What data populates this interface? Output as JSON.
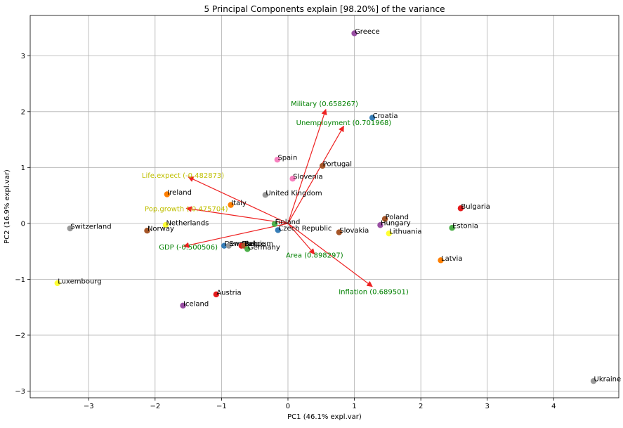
{
  "chart_data": {
    "type": "scatter",
    "title": "5 Principal Components explain [98.20%] of the variance",
    "xlabel": "PC1 (46.1% expl.var)",
    "ylabel": "PC2 (16.9% expl.var)",
    "xlim": [
      -3.88,
      4.98
    ],
    "ylim": [
      -3.12,
      3.72
    ],
    "xticks": [
      -3,
      -2,
      -1,
      0,
      1,
      2,
      3,
      4
    ],
    "yticks": [
      -3,
      -2,
      -1,
      0,
      1,
      2,
      3
    ],
    "xtick_labels": [
      "−3",
      "−2",
      "−1",
      "0",
      "1",
      "2",
      "3",
      "4"
    ],
    "ytick_labels": [
      "−3",
      "−2",
      "−1",
      "0",
      "1",
      "2",
      "3"
    ],
    "grid": true,
    "points": [
      {
        "label": "Greece",
        "x": 1.0,
        "y": 3.4,
        "color": "#984ea3"
      },
      {
        "label": "Croatia",
        "x": 1.27,
        "y": 1.89,
        "color": "#377eb8"
      },
      {
        "label": "Spain",
        "x": -0.16,
        "y": 1.14,
        "color": "#f781bf"
      },
      {
        "label": "Portugal",
        "x": 0.52,
        "y": 1.03,
        "color": "#a65628"
      },
      {
        "label": "Slovenia",
        "x": 0.07,
        "y": 0.8,
        "color": "#f781bf"
      },
      {
        "label": "Ireland",
        "x": -1.82,
        "y": 0.52,
        "color": "#ff7f00"
      },
      {
        "label": "United Kingdom",
        "x": -0.34,
        "y": 0.51,
        "color": "#999999"
      },
      {
        "label": "Italy",
        "x": -0.86,
        "y": 0.33,
        "color": "#ff7f00"
      },
      {
        "label": "Bulgaria",
        "x": 2.6,
        "y": 0.27,
        "color": "#e41a1c"
      },
      {
        "label": "Poland",
        "x": 1.46,
        "y": 0.08,
        "color": "#a65628"
      },
      {
        "label": "Hungary",
        "x": 1.39,
        "y": -0.03,
        "color": "#984ea3"
      },
      {
        "label": "Estonia",
        "x": 2.47,
        "y": -0.08,
        "color": "#4daf4a"
      },
      {
        "label": "Lithuania",
        "x": 1.52,
        "y": -0.18,
        "color": "#ffff33"
      },
      {
        "label": "Slovakia",
        "x": 0.77,
        "y": -0.16,
        "color": "#a65628"
      },
      {
        "label": "Switzerland",
        "x": -3.28,
        "y": -0.09,
        "color": "#999999"
      },
      {
        "label": "Netherlands",
        "x": -1.84,
        "y": -0.03,
        "color": "#ffff33"
      },
      {
        "label": "Norway",
        "x": -2.12,
        "y": -0.13,
        "color": "#a65628"
      },
      {
        "label": "Finland",
        "x": -0.2,
        "y": -0.01,
        "color": "#4daf4a"
      },
      {
        "label": "Czech Republic",
        "x": -0.15,
        "y": -0.12,
        "color": "#377eb8"
      },
      {
        "label": "Denmark",
        "x": -0.96,
        "y": -0.4,
        "color": "#377eb8"
      },
      {
        "label": "Sweden",
        "x": -0.89,
        "y": -0.4,
        "color": "#999999"
      },
      {
        "label": "France",
        "x": -0.7,
        "y": -0.4,
        "color": "#e41a1c"
      },
      {
        "label": "Belgium",
        "x": -0.66,
        "y": -0.4,
        "color": "#a65628"
      },
      {
        "label": "Germany",
        "x": -0.61,
        "y": -0.46,
        "color": "#4daf4a"
      },
      {
        "label": "Latvia",
        "x": 2.3,
        "y": -0.66,
        "color": "#ff7f00"
      },
      {
        "label": "Luxembourg",
        "x": -3.47,
        "y": -1.07,
        "color": "#ffff33"
      },
      {
        "label": "Austria",
        "x": -1.08,
        "y": -1.27,
        "color": "#e41a1c"
      },
      {
        "label": "Iceland",
        "x": -1.58,
        "y": -1.47,
        "color": "#984ea3"
      },
      {
        "label": "Ukraine",
        "x": 4.6,
        "y": -2.82,
        "color": "#999999"
      }
    ],
    "loadings": [
      {
        "label": "Military (0.658267)",
        "x": 0.57,
        "y": 2.04,
        "label_x": 0.55,
        "label_y": 2.14,
        "color": "#008000"
      },
      {
        "label": "Unemployment (0.701968)",
        "x": 0.84,
        "y": 1.74,
        "label_x": 0.84,
        "label_y": 1.8,
        "color": "#008000"
      },
      {
        "label": "Life.expect (-0.482873)",
        "x": -1.5,
        "y": 0.83,
        "label_x": -1.58,
        "label_y": 0.86,
        "color": "#bfbf00"
      },
      {
        "label": "Pop.growth (-0.475704)",
        "x": -1.53,
        "y": 0.27,
        "label_x": -1.53,
        "label_y": 0.26,
        "color": "#bfbf00"
      },
      {
        "label": "GDP (-0.500506)",
        "x": -1.57,
        "y": -0.41,
        "label_x": -1.5,
        "label_y": -0.42,
        "color": "#008000"
      },
      {
        "label": "Area (0.898297)",
        "x": 0.4,
        "y": -0.55,
        "label_x": 0.4,
        "label_y": -0.57,
        "color": "#008000"
      },
      {
        "label": "Inflation (0.689501)",
        "x": 1.27,
        "y": -1.13,
        "label_x": 1.29,
        "label_y": -1.22,
        "color": "#008000"
      }
    ],
    "arrow_color": "#ee2222"
  }
}
